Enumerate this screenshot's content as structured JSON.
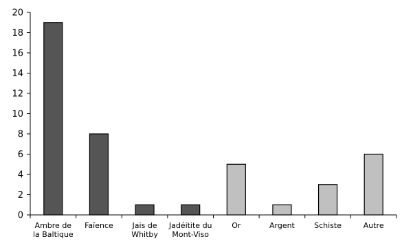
{
  "chart_data": {
    "type": "bar",
    "title": "",
    "xlabel": "",
    "ylabel": "",
    "ylim": [
      0,
      20
    ],
    "yticks": [
      0,
      2,
      4,
      6,
      8,
      10,
      12,
      14,
      16,
      18,
      20
    ],
    "grid": false,
    "legend": "none",
    "categories": [
      [
        "Ambre de",
        "la Baltique"
      ],
      [
        "Faïence"
      ],
      [
        "Jais de",
        "Whitby"
      ],
      [
        "Jadéitite du",
        "Mont-Viso"
      ],
      [
        "Or"
      ],
      [
        "Argent"
      ],
      [
        "Schiste"
      ],
      [
        "Autre"
      ]
    ],
    "values": [
      19,
      8,
      1,
      1,
      5,
      1,
      3,
      6
    ],
    "bar_colors": [
      "#555555",
      "#555555",
      "#555555",
      "#555555",
      "#c0c0c0",
      "#c0c0c0",
      "#c0c0c0",
      "#c0c0c0"
    ],
    "bar_stroke": "#000000",
    "axis_color": "#000000"
  }
}
